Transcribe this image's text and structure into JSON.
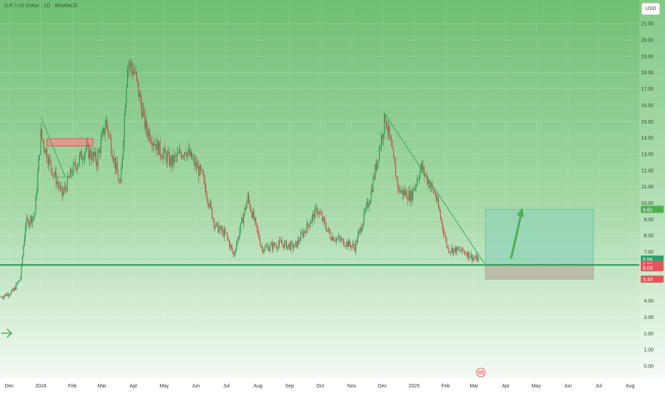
{
  "header": {
    "symbol_title": "ICP / US Dollar · 1D · BINANCE",
    "currency_button": "USD"
  },
  "chart_data": {
    "type": "candlestick",
    "title": "ICP / US Dollar · 1D · BINANCE",
    "ylim": [
      0,
      21.5
    ],
    "y_ticks": [
      0,
      1,
      2,
      3,
      4,
      5,
      6,
      7,
      8,
      9,
      10,
      11,
      12,
      13,
      14,
      15,
      16,
      17,
      18,
      19,
      20,
      21
    ],
    "y_tick_labels": [
      "0.00",
      "1.00",
      "2.00",
      "3.00",
      "4.00",
      "",
      "",
      "7.00",
      "8.00",
      "9.00",
      "10.00",
      "11.00",
      "12.00",
      "13.00",
      "14.00",
      "15.00",
      "16.00",
      "17.00",
      "18.00",
      "19.00",
      "20.00",
      "21.00"
    ],
    "x_ticks": [
      {
        "label": "Dec",
        "date": "2023-12-01"
      },
      {
        "label": "2024",
        "date": "2024-01-01"
      },
      {
        "label": "Feb",
        "date": "2024-02-01"
      },
      {
        "label": "Mar",
        "date": "2024-03-01"
      },
      {
        "label": "Apr",
        "date": "2024-04-01"
      },
      {
        "label": "May",
        "date": "2024-05-01"
      },
      {
        "label": "Jun",
        "date": "2024-06-01"
      },
      {
        "label": "Jul",
        "date": "2024-07-01"
      },
      {
        "label": "Aug",
        "date": "2024-08-01"
      },
      {
        "label": "Sep",
        "date": "2024-09-01"
      },
      {
        "label": "Oct",
        "date": "2024-10-01"
      },
      {
        "label": "Nov",
        "date": "2024-11-01"
      },
      {
        "label": "Dec",
        "date": "2024-12-01"
      },
      {
        "label": "2025",
        "date": "2025-01-01"
      },
      {
        "label": "Feb",
        "date": "2025-02-01"
      },
      {
        "label": "Mar",
        "date": "2025-03-01"
      },
      {
        "label": "Apr",
        "date": "2025-04-01"
      },
      {
        "label": "May",
        "date": "2025-05-01"
      },
      {
        "label": "Jun",
        "date": "2025-06-01"
      },
      {
        "label": "Jul",
        "date": "2025-07-01"
      },
      {
        "label": "Aug",
        "date": "2025-08-01"
      }
    ],
    "xlim": [
      "2023-11-22",
      "2025-08-10"
    ],
    "price_path": [
      {
        "date": "2023-11-22",
        "close": 4.2
      },
      {
        "date": "2023-12-05",
        "close": 4.6
      },
      {
        "date": "2023-12-12",
        "close": 5.4
      },
      {
        "date": "2023-12-17",
        "close": 8.7
      },
      {
        "date": "2023-12-26",
        "close": 9.3
      },
      {
        "date": "2024-01-01",
        "close": 14.2
      },
      {
        "date": "2024-01-10",
        "close": 12.4
      },
      {
        "date": "2024-01-22",
        "close": 10.5
      },
      {
        "date": "2024-02-01",
        "close": 12.0
      },
      {
        "date": "2024-02-14",
        "close": 13.3
      },
      {
        "date": "2024-02-25",
        "close": 12.6
      },
      {
        "date": "2024-03-05",
        "close": 15.0
      },
      {
        "date": "2024-03-19",
        "close": 10.9
      },
      {
        "date": "2024-03-26",
        "close": 18.7
      },
      {
        "date": "2024-04-02",
        "close": 18.0
      },
      {
        "date": "2024-04-13",
        "close": 14.6
      },
      {
        "date": "2024-04-27",
        "close": 13.2
      },
      {
        "date": "2024-05-08",
        "close": 12.5
      },
      {
        "date": "2024-05-22",
        "close": 13.3
      },
      {
        "date": "2024-06-07",
        "close": 11.7
      },
      {
        "date": "2024-06-20",
        "close": 8.6
      },
      {
        "date": "2024-07-01",
        "close": 8.0
      },
      {
        "date": "2024-07-08",
        "close": 6.8
      },
      {
        "date": "2024-07-22",
        "close": 10.3
      },
      {
        "date": "2024-08-05",
        "close": 7.2
      },
      {
        "date": "2024-08-23",
        "close": 7.5
      },
      {
        "date": "2024-09-06",
        "close": 7.3
      },
      {
        "date": "2024-09-28",
        "close": 9.6
      },
      {
        "date": "2024-10-11",
        "close": 8.0
      },
      {
        "date": "2024-11-04",
        "close": 7.3
      },
      {
        "date": "2024-11-19",
        "close": 10.4
      },
      {
        "date": "2024-12-04",
        "close": 15.3
      },
      {
        "date": "2024-12-17",
        "close": 10.8
      },
      {
        "date": "2024-12-29",
        "close": 10.4
      },
      {
        "date": "2025-01-08",
        "close": 12.2
      },
      {
        "date": "2025-01-22",
        "close": 10.5
      },
      {
        "date": "2025-02-03",
        "close": 7.2
      },
      {
        "date": "2025-02-20",
        "close": 7.0
      },
      {
        "date": "2025-03-01",
        "close": 6.6
      },
      {
        "date": "2025-03-05",
        "close": 6.56
      }
    ],
    "price_labels": [
      {
        "value": 9.61,
        "text": "9.61",
        "color": "#4caf50"
      },
      {
        "value": 6.56,
        "text": "6.56",
        "sub": "19:20:52",
        "color": "#2e9e6b"
      },
      {
        "value": 6.23,
        "text": "6.23",
        "color": "#e15759"
      },
      {
        "value": 6.03,
        "text": "6.03",
        "color": "#e15759"
      },
      {
        "value": 5.33,
        "text": "5.33",
        "color": "#e15759"
      }
    ],
    "drawings": {
      "support_level": 6.2,
      "long_position": {
        "start": "2025-03-12",
        "end": "2025-06-26",
        "entry": 6.23,
        "target": 9.61,
        "stop": 5.33
      },
      "upper_trendline": [
        {
          "date": "2024-12-02",
          "value": 15.6
        },
        {
          "date": "2025-03-11",
          "value": 6.3
        }
      ],
      "early_trendline": [
        {
          "date": "2024-01-01",
          "value": 15.3
        },
        {
          "date": "2024-01-25",
          "value": 11.6
        }
      ],
      "resistance_box": {
        "start": "2024-01-07",
        "end": "2024-02-21",
        "top": 13.95,
        "bottom": 13.5
      }
    }
  }
}
